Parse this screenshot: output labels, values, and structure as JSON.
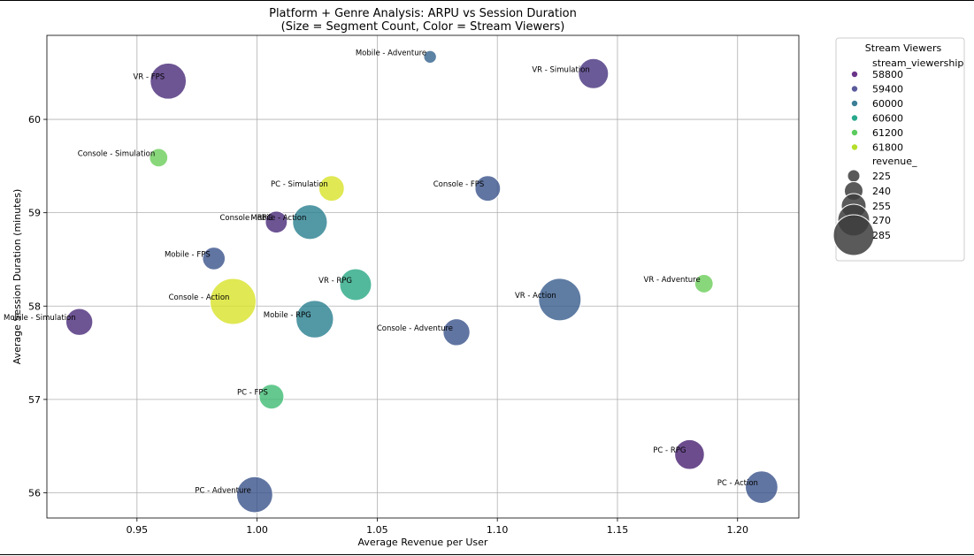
{
  "chart_data": {
    "type": "scatter",
    "title_line1": "Platform + Genre Analysis: ARPU vs Session Duration",
    "title_line2": "(Size = Segment Count, Color = Stream Viewers)",
    "xlabel": "Average Revenue per User",
    "ylabel": "Average Session Duration (minutes)",
    "xlim": [
      0.9125,
      1.2255
    ],
    "ylim": [
      55.73,
      60.9
    ],
    "xticks": [
      0.95,
      1.0,
      1.05,
      1.1,
      1.15,
      1.2
    ],
    "xtick_labels": [
      "0.95",
      "1.00",
      "1.05",
      "1.10",
      "1.15",
      "1.20"
    ],
    "yticks": [
      56,
      57,
      58,
      59,
      60
    ],
    "ytick_labels": [
      "56",
      "57",
      "58",
      "59",
      "60"
    ],
    "grid": true,
    "points": [
      {
        "label": "Mobile - Adventure",
        "x": 1.072,
        "y": 60.67,
        "size": 196,
        "viewers": 59600
      },
      {
        "label": "VR - Simulation",
        "x": 1.14,
        "y": 60.49,
        "size": 245,
        "viewers": 59000
      },
      {
        "label": "VR - FPS",
        "x": 0.963,
        "y": 60.41,
        "size": 262,
        "viewers": 58900
      },
      {
        "label": "Console - Simulation",
        "x": 0.959,
        "y": 59.59,
        "size": 212,
        "viewers": 61200
      },
      {
        "label": "PC - Simulation",
        "x": 1.031,
        "y": 59.26,
        "size": 232,
        "viewers": 61800
      },
      {
        "label": "Console - FPS",
        "x": 1.096,
        "y": 59.26,
        "size": 232,
        "viewers": 59400
      },
      {
        "label": "Console - RPG",
        "x": 1.008,
        "y": 58.9,
        "size": 222,
        "viewers": 58900
      },
      {
        "label": "Mobile - Action",
        "x": 1.022,
        "y": 58.9,
        "size": 258,
        "viewers": 60000
      },
      {
        "label": "Mobile - FPS",
        "x": 0.982,
        "y": 58.51,
        "size": 224,
        "viewers": 59400
      },
      {
        "label": "VR - RPG",
        "x": 1.041,
        "y": 58.23,
        "size": 250,
        "viewers": 60600
      },
      {
        "label": "VR - Adventure",
        "x": 1.186,
        "y": 58.24,
        "size": 212,
        "viewers": 61200
      },
      {
        "label": "VR - Action",
        "x": 1.126,
        "y": 58.07,
        "size": 280,
        "viewers": 59500
      },
      {
        "label": "Console - Action",
        "x": 0.99,
        "y": 58.05,
        "size": 290,
        "viewers": 61800
      },
      {
        "label": "Mobile - Simulation",
        "x": 0.926,
        "y": 57.83,
        "size": 236,
        "viewers": 58900
      },
      {
        "label": "Mobile - RPG",
        "x": 1.024,
        "y": 57.86,
        "size": 266,
        "viewers": 60000
      },
      {
        "label": "Console - Adventure",
        "x": 1.083,
        "y": 57.72,
        "size": 236,
        "viewers": 59400
      },
      {
        "label": "PC - FPS",
        "x": 1.006,
        "y": 57.03,
        "size": 230,
        "viewers": 60900
      },
      {
        "label": "PC - RPG",
        "x": 1.18,
        "y": 56.41,
        "size": 244,
        "viewers": 58800
      },
      {
        "label": "PC - Action",
        "x": 1.21,
        "y": 56.06,
        "size": 252,
        "viewers": 59400
      },
      {
        "label": "PC - Adventure",
        "x": 0.999,
        "y": 55.98,
        "size": 262,
        "viewers": 59400
      }
    ],
    "legend": {
      "title": "Stream Viewers",
      "placement": "outside-right",
      "color_header": "stream_viewership",
      "color_entries": [
        {
          "label": "58800",
          "color": "#6a3589"
        },
        {
          "label": "59400",
          "color": "#5a5b9c"
        },
        {
          "label": "60000",
          "color": "#3a7f96"
        },
        {
          "label": "60600",
          "color": "#28a98b"
        },
        {
          "label": "61200",
          "color": "#5ccb5f"
        },
        {
          "label": "61800",
          "color": "#b5de2b"
        }
      ],
      "size_header": "revenue_",
      "size_entries": [
        {
          "label": "225",
          "value": 225
        },
        {
          "label": "240",
          "value": 240
        },
        {
          "label": "255",
          "value": 255
        },
        {
          "label": "270",
          "value": 270
        },
        {
          "label": "285",
          "value": 285
        }
      ]
    },
    "colors": {
      "viridis_stops": [
        "#440154",
        "#482878",
        "#3e4989",
        "#31688e",
        "#26828e",
        "#1f9e89",
        "#35b779",
        "#6ece58",
        "#b5de2b",
        "#fde725"
      ],
      "viewers_range": [
        58500,
        62000
      ],
      "size_marker": "#3d3d3d",
      "grid": "#b0b0b0"
    }
  }
}
